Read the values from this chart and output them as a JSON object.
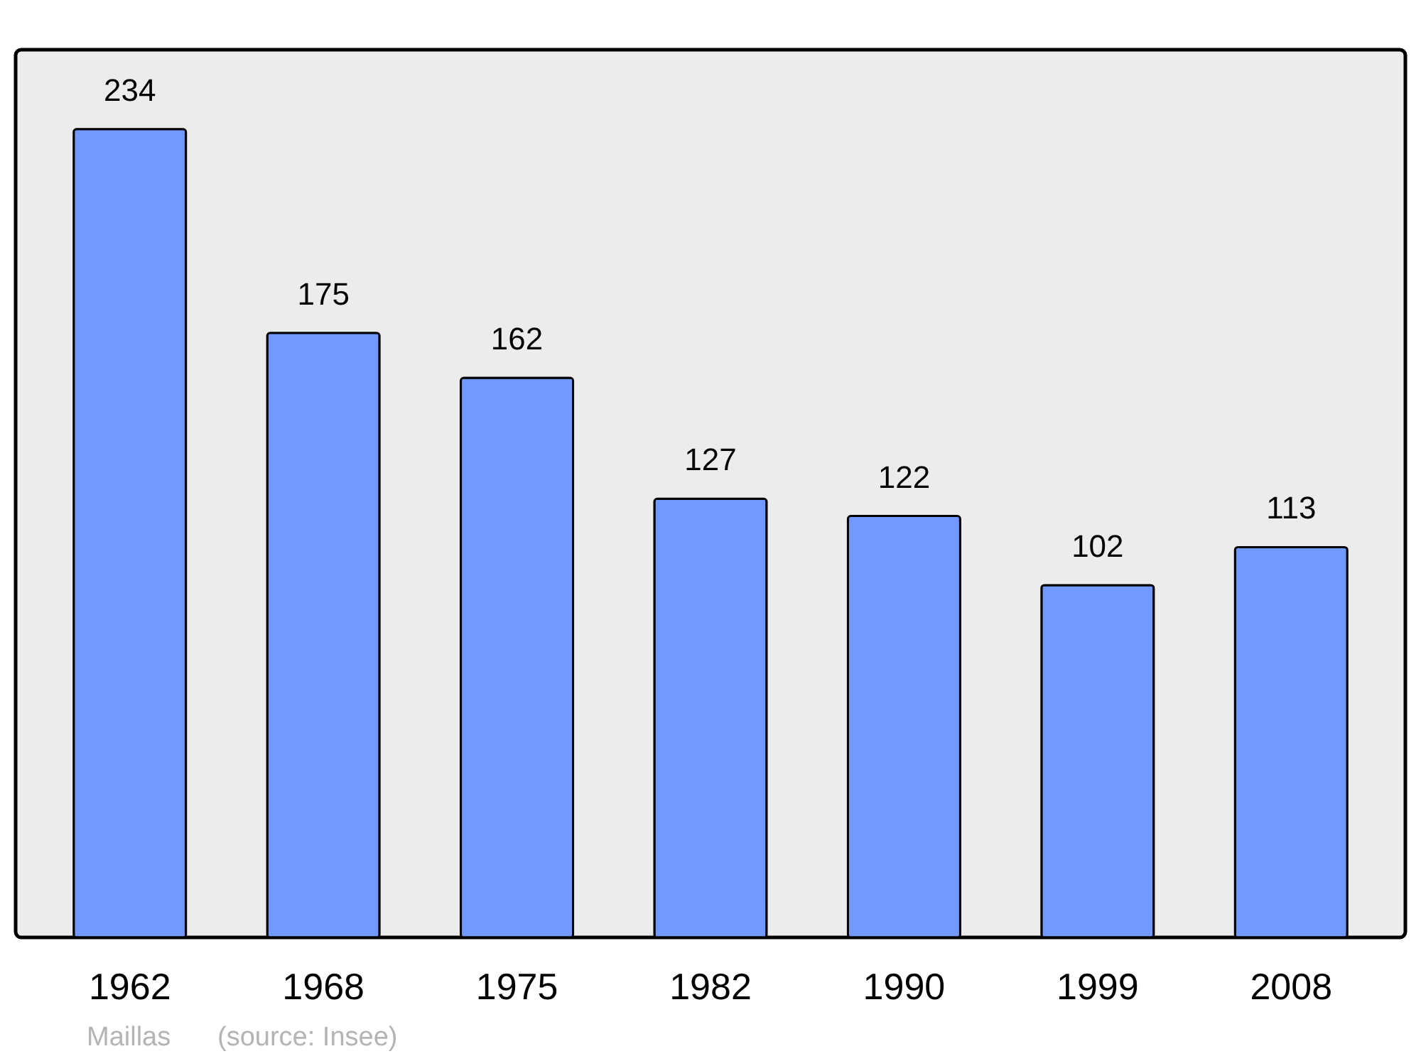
{
  "chart_data": {
    "type": "bar",
    "categories": [
      "1962",
      "1968",
      "1975",
      "1982",
      "1990",
      "1999",
      "2008"
    ],
    "values": [
      234,
      175,
      162,
      127,
      122,
      102,
      113
    ],
    "color": "#7299ff",
    "data_labels": true,
    "ylim": [
      0,
      257
    ],
    "tick_labels": "x",
    "grid": false,
    "annotations": [
      "Maillas",
      "(source: Insee)"
    ]
  }
}
